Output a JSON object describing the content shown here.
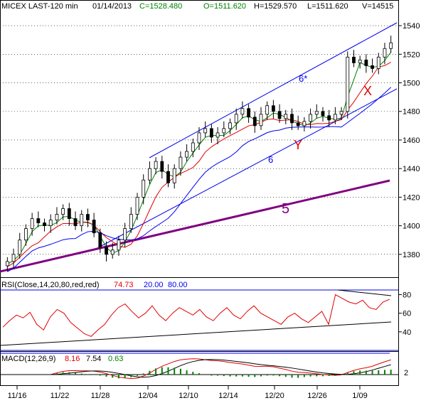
{
  "header": {
    "symbol": "MICEX LAST-120 min",
    "date": "01/14/2013",
    "close": "C=1528.480",
    "open": "O=1511.620",
    "high": "H=1529.570",
    "low": "L=1511.620",
    "volume": "V=14515"
  },
  "colors": {
    "text": "#000000",
    "green": "#007f00",
    "red": "#e00000",
    "blue": "#0000ee",
    "purple": "#800080",
    "candle": "#000000"
  },
  "chart_data": [
    {
      "type": "candlestick",
      "panel": "price",
      "ylim": [
        1365,
        1548
      ],
      "y_ticks": [
        1380,
        1400,
        1420,
        1440,
        1460,
        1480,
        1500,
        1520,
        1540
      ],
      "x_tick_labels": [
        "11/16",
        "11/22",
        "11/28",
        "12/04",
        "12/10",
        "12/14",
        "12/20",
        "12/26",
        "1/09"
      ],
      "close_series": [
        1375,
        1380,
        1390,
        1398,
        1405,
        1402,
        1400,
        1404,
        1408,
        1412,
        1405,
        1400,
        1408,
        1404,
        1395,
        1385,
        1380,
        1383,
        1390,
        1398,
        1408,
        1420,
        1432,
        1440,
        1445,
        1438,
        1430,
        1440,
        1448,
        1452,
        1458,
        1465,
        1468,
        1462,
        1465,
        1468,
        1472,
        1478,
        1482,
        1476,
        1470,
        1478,
        1484,
        1480,
        1475,
        1478,
        1472,
        1470,
        1473,
        1478,
        1480,
        1477,
        1474,
        1478,
        1480,
        1518,
        1514,
        1516,
        1512,
        1510,
        1518,
        1524,
        1528
      ],
      "overlays": [
        {
          "label": "6*",
          "color": "blue"
        },
        {
          "label": "6",
          "color": "blue"
        },
        {
          "label": "5",
          "color": "purple"
        },
        {
          "label": "X",
          "color": "red"
        },
        {
          "label": "Y",
          "color": "red"
        }
      ]
    },
    {
      "type": "line",
      "panel": "rsi",
      "legend": "RSI(Close,14,20,80,red,red)",
      "current_value": "74.73",
      "lower_level": "20.00",
      "upper_level": "80.00",
      "y_ticks": [
        40,
        60,
        80
      ],
      "ylim": [
        20,
        85
      ],
      "series": [
        {
          "name": "RSI",
          "color": "red",
          "values": [
            45,
            52,
            58,
            55,
            61,
            48,
            42,
            56,
            64,
            60,
            50,
            44,
            38,
            35,
            42,
            48,
            58,
            66,
            70,
            62,
            55,
            60,
            68,
            58,
            52,
            60,
            66,
            62,
            58,
            64,
            56,
            52,
            60,
            66,
            58,
            54,
            62,
            68,
            60,
            56,
            52,
            48,
            56,
            60,
            54,
            50,
            56,
            62,
            48,
            80,
            76,
            72,
            70,
            74,
            66,
            64,
            72,
            75
          ]
        }
      ]
    },
    {
      "type": "line",
      "panel": "macd",
      "legend": "MACD(12,26,9)",
      "values_label": [
        "8.16",
        "7.54",
        "0.63"
      ],
      "y_ticks": [
        2
      ],
      "series": [
        {
          "name": "MACD",
          "color": "red"
        },
        {
          "name": "Signal",
          "color": "black"
        },
        {
          "name": "Histogram",
          "color": "green"
        }
      ]
    }
  ]
}
